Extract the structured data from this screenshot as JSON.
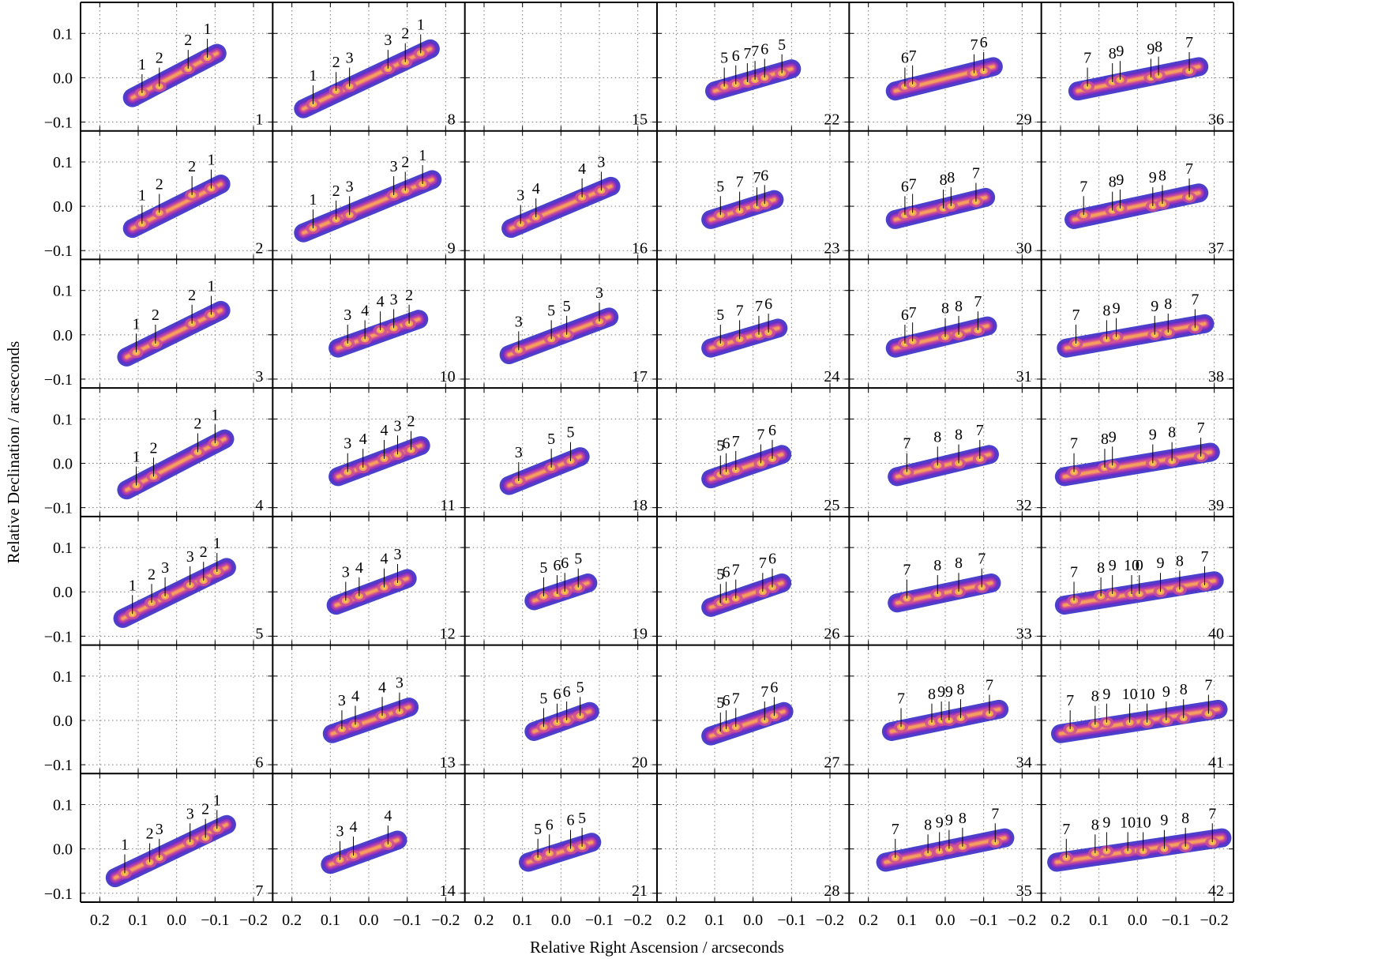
{
  "chart_data": {
    "type": "contour-grid",
    "xlabel": "Relative Right Ascension / arcseconds",
    "ylabel": "Relative Declination / arcseconds",
    "grid": true,
    "layout": {
      "rows": 7,
      "cols": 6,
      "order": "column-major"
    },
    "xlim": [
      0.25,
      -0.25
    ],
    "ylim": [
      -0.12,
      0.17
    ],
    "xticks": [
      0.2,
      0.1,
      0.0,
      -0.1,
      -0.2
    ],
    "xtick_labels": [
      "0.2",
      "0.1",
      "0.0",
      "−0.1",
      "−0.2"
    ],
    "yticks": [
      0.1,
      0.0,
      -0.1
    ],
    "ytick_labels": [
      "0.1",
      "0.0",
      "−0.1"
    ],
    "contour_colors": [
      "#2a1fc2",
      "#6a2fc4",
      "#a13ab8",
      "#cc4f94",
      "#e8747a",
      "#f5a35c",
      "#fbd34a"
    ],
    "empty_panels": [
      6,
      15,
      28
    ],
    "panels": [
      {
        "n": 1,
        "labels": [
          [
            "1",
            0.09,
            -0.035
          ],
          [
            "2",
            0.045,
            -0.02
          ],
          [
            "2",
            -0.03,
            0.02
          ],
          [
            "1",
            -0.08,
            0.045
          ]
        ]
      },
      {
        "n": 2,
        "labels": [
          [
            "1",
            0.09,
            -0.04
          ],
          [
            "2",
            0.045,
            -0.015
          ],
          [
            "2",
            -0.04,
            0.025
          ],
          [
            "1",
            -0.09,
            0.04
          ]
        ]
      },
      {
        "n": 3,
        "labels": [
          [
            "1",
            0.105,
            -0.04
          ],
          [
            "2",
            0.055,
            -0.02
          ],
          [
            "2",
            -0.04,
            0.025
          ],
          [
            "1",
            -0.09,
            0.045
          ]
        ]
      },
      {
        "n": 4,
        "labels": [
          [
            "1",
            0.105,
            -0.05
          ],
          [
            "2",
            0.06,
            -0.03
          ],
          [
            "2",
            -0.055,
            0.025
          ],
          [
            "1",
            -0.1,
            0.045
          ]
        ]
      },
      {
        "n": 5,
        "labels": [
          [
            "1",
            0.115,
            -0.05
          ],
          [
            "2",
            0.065,
            -0.025
          ],
          [
            "3",
            0.03,
            -0.01
          ],
          [
            "3",
            -0.035,
            0.015
          ],
          [
            "2",
            -0.07,
            0.025
          ],
          [
            "1",
            -0.105,
            0.045
          ]
        ]
      },
      {
        "n": 7,
        "labels": [
          [
            "1",
            0.135,
            -0.055
          ],
          [
            "2",
            0.07,
            -0.03
          ],
          [
            "3",
            0.045,
            -0.02
          ],
          [
            "3",
            -0.035,
            0.015
          ],
          [
            "2",
            -0.075,
            0.025
          ],
          [
            "1",
            -0.105,
            0.045
          ]
        ]
      },
      {
        "n": 8,
        "labels": [
          [
            "1",
            0.145,
            -0.06
          ],
          [
            "2",
            0.085,
            -0.03
          ],
          [
            "3",
            0.05,
            -0.02
          ],
          [
            "3",
            -0.05,
            0.02
          ],
          [
            "2",
            -0.095,
            0.035
          ],
          [
            "1",
            -0.135,
            0.055
          ]
        ]
      },
      {
        "n": 9,
        "labels": [
          [
            "1",
            0.145,
            -0.05
          ],
          [
            "2",
            0.085,
            -0.03
          ],
          [
            "3",
            0.05,
            -0.02
          ],
          [
            "3",
            -0.065,
            0.025
          ],
          [
            "2",
            -0.095,
            0.035
          ],
          [
            "1",
            -0.14,
            0.05
          ]
        ]
      },
      {
        "n": 10,
        "labels": [
          [
            "3",
            0.055,
            -0.02
          ],
          [
            "4",
            0.01,
            -0.01
          ],
          [
            "4",
            -0.03,
            0.01
          ],
          [
            "3",
            -0.065,
            0.015
          ],
          [
            "2",
            -0.105,
            0.025
          ]
        ]
      },
      {
        "n": 11,
        "labels": [
          [
            "3",
            0.055,
            -0.02
          ],
          [
            "4",
            0.015,
            -0.01
          ],
          [
            "4",
            -0.04,
            0.01
          ],
          [
            "3",
            -0.075,
            0.02
          ],
          [
            "2",
            -0.11,
            0.03
          ]
        ]
      },
      {
        "n": 12,
        "labels": [
          [
            "3",
            0.06,
            -0.02
          ],
          [
            "4",
            0.025,
            -0.01
          ],
          [
            "4",
            -0.04,
            0.01
          ],
          [
            "3",
            -0.075,
            0.02
          ]
        ]
      },
      {
        "n": 13,
        "labels": [
          [
            "3",
            0.07,
            -0.02
          ],
          [
            "4",
            0.035,
            -0.01
          ],
          [
            "4",
            -0.035,
            0.01
          ],
          [
            "3",
            -0.08,
            0.02
          ]
        ]
      },
      {
        "n": 14,
        "labels": [
          [
            "3",
            0.075,
            -0.025
          ],
          [
            "4",
            0.04,
            -0.015
          ],
          [
            "4",
            -0.05,
            0.01
          ]
        ]
      },
      {
        "n": 16,
        "labels": [
          [
            "3",
            0.105,
            -0.04
          ],
          [
            "4",
            0.065,
            -0.025
          ],
          [
            "4",
            -0.055,
            0.02
          ],
          [
            "3",
            -0.105,
            0.035
          ]
        ]
      },
      {
        "n": 17,
        "labels": [
          [
            "3",
            0.11,
            -0.035
          ],
          [
            "5",
            0.025,
            -0.01
          ],
          [
            "5",
            -0.015,
            0.0
          ],
          [
            "3",
            -0.1,
            0.03
          ]
        ]
      },
      {
        "n": 18,
        "labels": [
          [
            "3",
            0.11,
            -0.04
          ],
          [
            "5",
            0.025,
            -0.01
          ],
          [
            "5",
            -0.025,
            0.005
          ]
        ]
      },
      {
        "n": 19,
        "labels": [
          [
            "5",
            0.045,
            -0.01
          ],
          [
            "6",
            0.01,
            -0.005
          ],
          [
            "6",
            -0.01,
            0.0
          ],
          [
            "5",
            -0.045,
            0.01
          ]
        ]
      },
      {
        "n": 20,
        "labels": [
          [
            "5",
            0.045,
            -0.015
          ],
          [
            "6",
            0.01,
            -0.005
          ],
          [
            "6",
            -0.015,
            0.0
          ],
          [
            "5",
            -0.05,
            0.01
          ]
        ]
      },
      {
        "n": 21,
        "labels": [
          [
            "5",
            0.06,
            -0.02
          ],
          [
            "6",
            0.03,
            -0.01
          ],
          [
            "6",
            -0.025,
            0.0
          ],
          [
            "5",
            -0.055,
            0.005
          ]
        ]
      },
      {
        "n": 22,
        "labels": [
          [
            "5",
            0.075,
            -0.02
          ],
          [
            "6",
            0.045,
            -0.015
          ],
          [
            "7",
            0.015,
            -0.01
          ],
          [
            "7",
            -0.005,
            -0.005
          ],
          [
            "6",
            -0.03,
            0.0
          ],
          [
            "5",
            -0.075,
            0.01
          ]
        ]
      },
      {
        "n": 23,
        "labels": [
          [
            "5",
            0.085,
            -0.02
          ],
          [
            "7",
            0.035,
            -0.01
          ],
          [
            "7",
            -0.01,
            0.0
          ],
          [
            "6",
            -0.03,
            0.005
          ]
        ]
      },
      {
        "n": 24,
        "labels": [
          [
            "5",
            0.085,
            -0.02
          ],
          [
            "7",
            0.035,
            -0.01
          ],
          [
            "7",
            -0.015,
            0.0
          ],
          [
            "6",
            -0.04,
            0.005
          ]
        ]
      },
      {
        "n": 25,
        "labels": [
          [
            "5",
            0.085,
            -0.025
          ],
          [
            "6",
            0.07,
            -0.02
          ],
          [
            "7",
            0.045,
            -0.015
          ],
          [
            "7",
            -0.02,
            0.0
          ],
          [
            "6",
            -0.05,
            0.01
          ]
        ]
      },
      {
        "n": 26,
        "labels": [
          [
            "5",
            0.085,
            -0.025
          ],
          [
            "6",
            0.07,
            -0.02
          ],
          [
            "7",
            0.045,
            -0.015
          ],
          [
            "7",
            -0.025,
            0.0
          ],
          [
            "6",
            -0.05,
            0.01
          ]
        ]
      },
      {
        "n": 27,
        "labels": [
          [
            "5",
            0.085,
            -0.025
          ],
          [
            "6",
            0.07,
            -0.02
          ],
          [
            "7",
            0.045,
            -0.015
          ],
          [
            "7",
            -0.03,
            0.0
          ],
          [
            "6",
            -0.055,
            0.01
          ]
        ]
      },
      {
        "n": 29,
        "labels": [
          [
            "6",
            0.105,
            -0.02
          ],
          [
            "7",
            0.085,
            -0.015
          ],
          [
            "7",
            -0.075,
            0.01
          ],
          [
            "6",
            -0.1,
            0.015
          ]
        ]
      },
      {
        "n": 30,
        "labels": [
          [
            "6",
            0.105,
            -0.02
          ],
          [
            "7",
            0.085,
            -0.015
          ],
          [
            "8",
            0.005,
            -0.005
          ],
          [
            "8",
            -0.015,
            0.0
          ],
          [
            "7",
            -0.08,
            0.01
          ]
        ]
      },
      {
        "n": 31,
        "labels": [
          [
            "6",
            0.105,
            -0.02
          ],
          [
            "7",
            0.085,
            -0.015
          ],
          [
            "8",
            0.0,
            -0.005
          ],
          [
            "8",
            -0.035,
            0.0
          ],
          [
            "7",
            -0.085,
            0.01
          ]
        ]
      },
      {
        "n": 32,
        "labels": [
          [
            "7",
            0.1,
            -0.02
          ],
          [
            "8",
            0.02,
            -0.005
          ],
          [
            "8",
            -0.035,
            0.0
          ],
          [
            "7",
            -0.09,
            0.01
          ]
        ]
      },
      {
        "n": 33,
        "labels": [
          [
            "7",
            0.1,
            -0.015
          ],
          [
            "8",
            0.02,
            -0.005
          ],
          [
            "8",
            -0.035,
            0.0
          ],
          [
            "7",
            -0.095,
            0.01
          ]
        ]
      },
      {
        "n": 34,
        "labels": [
          [
            "7",
            0.115,
            -0.015
          ],
          [
            "8",
            0.035,
            -0.005
          ],
          [
            "9",
            0.01,
            0.0
          ],
          [
            "9",
            -0.01,
            0.0
          ],
          [
            "8",
            -0.04,
            0.005
          ],
          [
            "7",
            -0.115,
            0.015
          ]
        ]
      },
      {
        "n": 35,
        "labels": [
          [
            "7",
            0.13,
            -0.02
          ],
          [
            "8",
            0.045,
            -0.01
          ],
          [
            "9",
            0.015,
            -0.005
          ],
          [
            "9",
            -0.01,
            0.0
          ],
          [
            "8",
            -0.045,
            0.005
          ],
          [
            "7",
            -0.13,
            0.015
          ]
        ]
      },
      {
        "n": 36,
        "labels": [
          [
            "7",
            0.13,
            -0.02
          ],
          [
            "8",
            0.065,
            -0.01
          ],
          [
            "9",
            0.045,
            -0.005
          ],
          [
            "9",
            -0.035,
            0.0
          ],
          [
            "8",
            -0.055,
            0.005
          ],
          [
            "7",
            -0.135,
            0.015
          ]
        ]
      },
      {
        "n": 37,
        "labels": [
          [
            "7",
            0.14,
            -0.02
          ],
          [
            "8",
            0.065,
            -0.01
          ],
          [
            "9",
            0.045,
            -0.005
          ],
          [
            "9",
            -0.04,
            0.0
          ],
          [
            "8",
            -0.065,
            0.005
          ],
          [
            "7",
            -0.135,
            0.02
          ]
        ]
      },
      {
        "n": 38,
        "labels": [
          [
            "7",
            0.16,
            -0.02
          ],
          [
            "8",
            0.08,
            -0.01
          ],
          [
            "9",
            0.055,
            -0.005
          ],
          [
            "9",
            -0.045,
            0.0
          ],
          [
            "8",
            -0.08,
            0.005
          ],
          [
            "7",
            -0.15,
            0.015
          ]
        ]
      },
      {
        "n": 39,
        "labels": [
          [
            "7",
            0.165,
            -0.02
          ],
          [
            "8",
            0.085,
            -0.01
          ],
          [
            "9",
            0.065,
            -0.005
          ],
          [
            "9",
            -0.04,
            0.0
          ],
          [
            "8",
            -0.09,
            0.005
          ],
          [
            "7",
            -0.165,
            0.015
          ]
        ]
      },
      {
        "n": 40,
        "labels": [
          [
            "7",
            0.165,
            -0.02
          ],
          [
            "8",
            0.095,
            -0.01
          ],
          [
            "9",
            0.065,
            -0.005
          ],
          [
            "10",
            0.015,
            -0.005
          ],
          [
            "0",
            -0.005,
            -0.005
          ],
          [
            "9",
            -0.06,
            0.0
          ],
          [
            "8",
            -0.11,
            0.005
          ],
          [
            "7",
            -0.175,
            0.015
          ]
        ]
      },
      {
        "n": 41,
        "labels": [
          [
            "7",
            0.175,
            -0.02
          ],
          [
            "8",
            0.11,
            -0.01
          ],
          [
            "9",
            0.08,
            -0.005
          ],
          [
            "10",
            0.02,
            -0.005
          ],
          [
            "10",
            -0.025,
            -0.005
          ],
          [
            "9",
            -0.075,
            0.0
          ],
          [
            "8",
            -0.12,
            0.005
          ],
          [
            "7",
            -0.185,
            0.015
          ]
        ]
      },
      {
        "n": 42,
        "labels": [
          [
            "7",
            0.185,
            -0.02
          ],
          [
            "8",
            0.11,
            -0.01
          ],
          [
            "9",
            0.08,
            -0.005
          ],
          [
            "10",
            0.025,
            -0.005
          ],
          [
            "10",
            -0.015,
            -0.005
          ],
          [
            "9",
            -0.07,
            0.0
          ],
          [
            "8",
            -0.125,
            0.005
          ],
          [
            "7",
            -0.195,
            0.015
          ]
        ]
      }
    ]
  }
}
